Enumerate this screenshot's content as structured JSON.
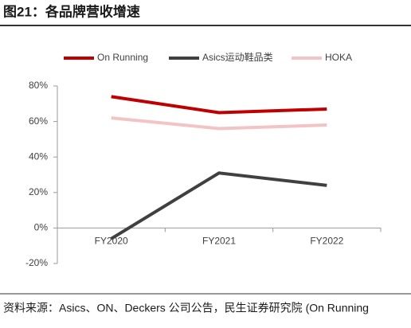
{
  "title": "图21：各品牌营收增速",
  "source": "资料来源：Asics、ON、Deckers 公司公告，民生证券研究院 (On Running",
  "chart_data": {
    "type": "line",
    "categories": [
      "FY2020",
      "FY2021",
      "FY2022"
    ],
    "series": [
      {
        "name": "On Running",
        "color": "#c00000",
        "values": [
          74,
          65,
          67
        ]
      },
      {
        "name": "Asics运动鞋品类",
        "color": "#404040",
        "values": [
          -6,
          31,
          24
        ]
      },
      {
        "name": "HOKA",
        "color": "#f2c4c4",
        "values": [
          62,
          56,
          58
        ]
      }
    ],
    "ylim": [
      -20,
      80
    ],
    "yticks": [
      {
        "value": -20,
        "label": "-20%"
      },
      {
        "value": 0,
        "label": "0%"
      },
      {
        "value": 20,
        "label": "20%"
      },
      {
        "value": 40,
        "label": "40%"
      },
      {
        "value": 60,
        "label": "60%"
      },
      {
        "value": 80,
        "label": "80%"
      }
    ],
    "legend": "top"
  }
}
